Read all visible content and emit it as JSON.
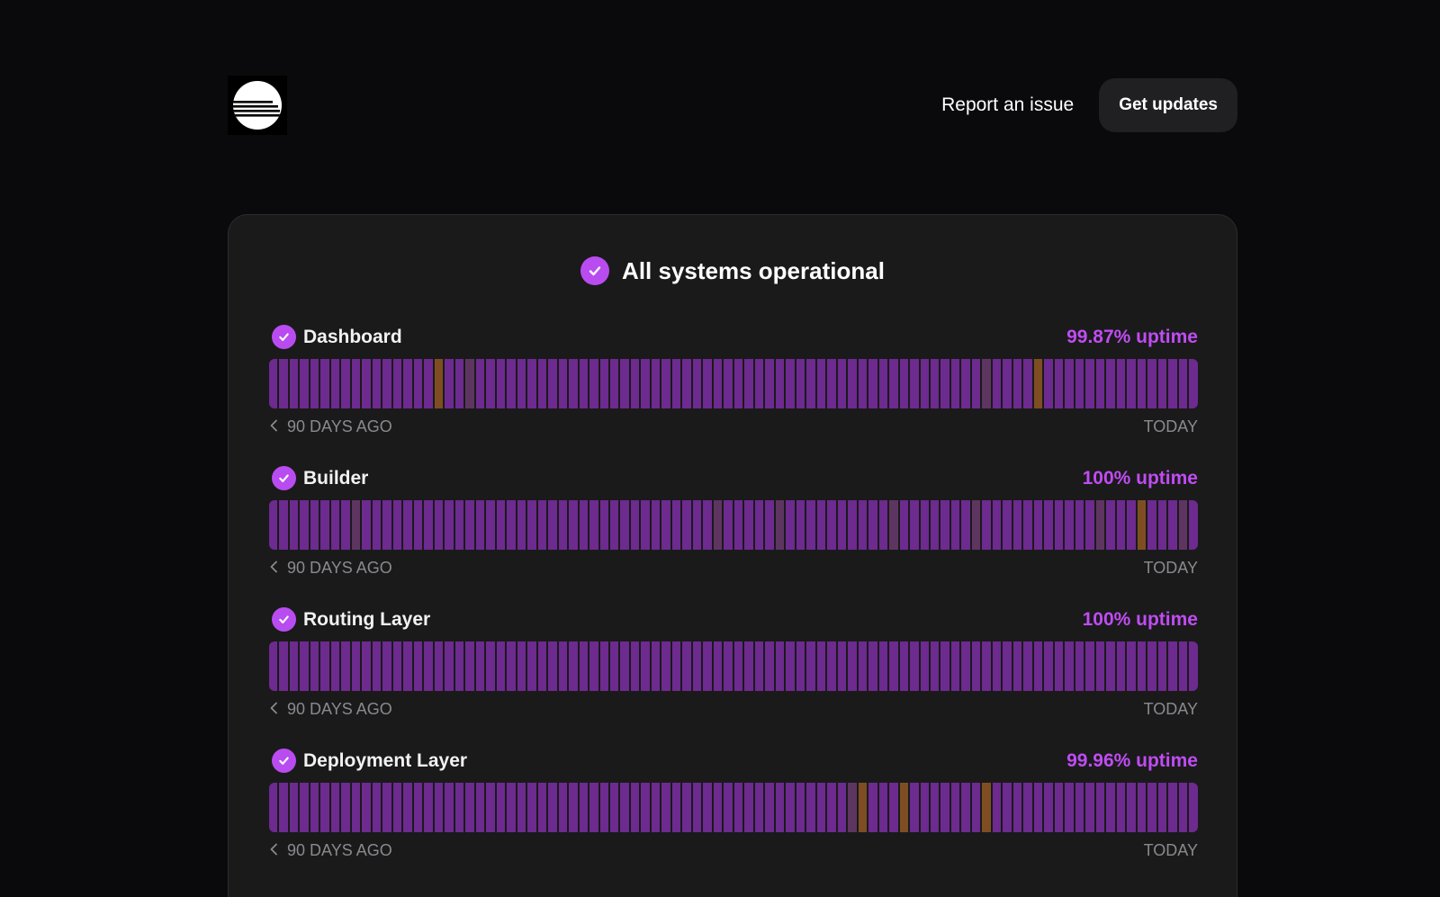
{
  "header": {
    "logo_icon": "train-logo-icon",
    "report_label": "Report an issue",
    "updates_label": "Get updates"
  },
  "overall": {
    "status_text": "All systems operational",
    "icon": "check-circle-icon"
  },
  "colors": {
    "operational": "#6d2a8f",
    "degraded": "#5e3560",
    "incident": "#7e4e22",
    "accent": "#c04cf2"
  },
  "timeline": {
    "days": 90,
    "start_label": "90 DAYS AGO",
    "end_label": "TODAY"
  },
  "services": [
    {
      "name": "Dashboard",
      "uptime": "99.87% uptime",
      "status_icon": "check-circle-icon",
      "incidents": [
        16,
        74
      ],
      "degraded": [
        19,
        69
      ]
    },
    {
      "name": "Builder",
      "uptime": "100% uptime",
      "status_icon": "check-circle-icon",
      "incidents": [
        84
      ],
      "degraded": [
        8,
        43,
        49,
        60,
        68,
        80,
        88
      ]
    },
    {
      "name": "Routing Layer",
      "uptime": "100% uptime",
      "status_icon": "check-circle-icon",
      "incidents": [],
      "degraded": []
    },
    {
      "name": "Deployment Layer",
      "uptime": "99.96% uptime",
      "status_icon": "check-circle-icon",
      "incidents": [
        57,
        61,
        69
      ],
      "degraded": [
        56
      ]
    }
  ]
}
